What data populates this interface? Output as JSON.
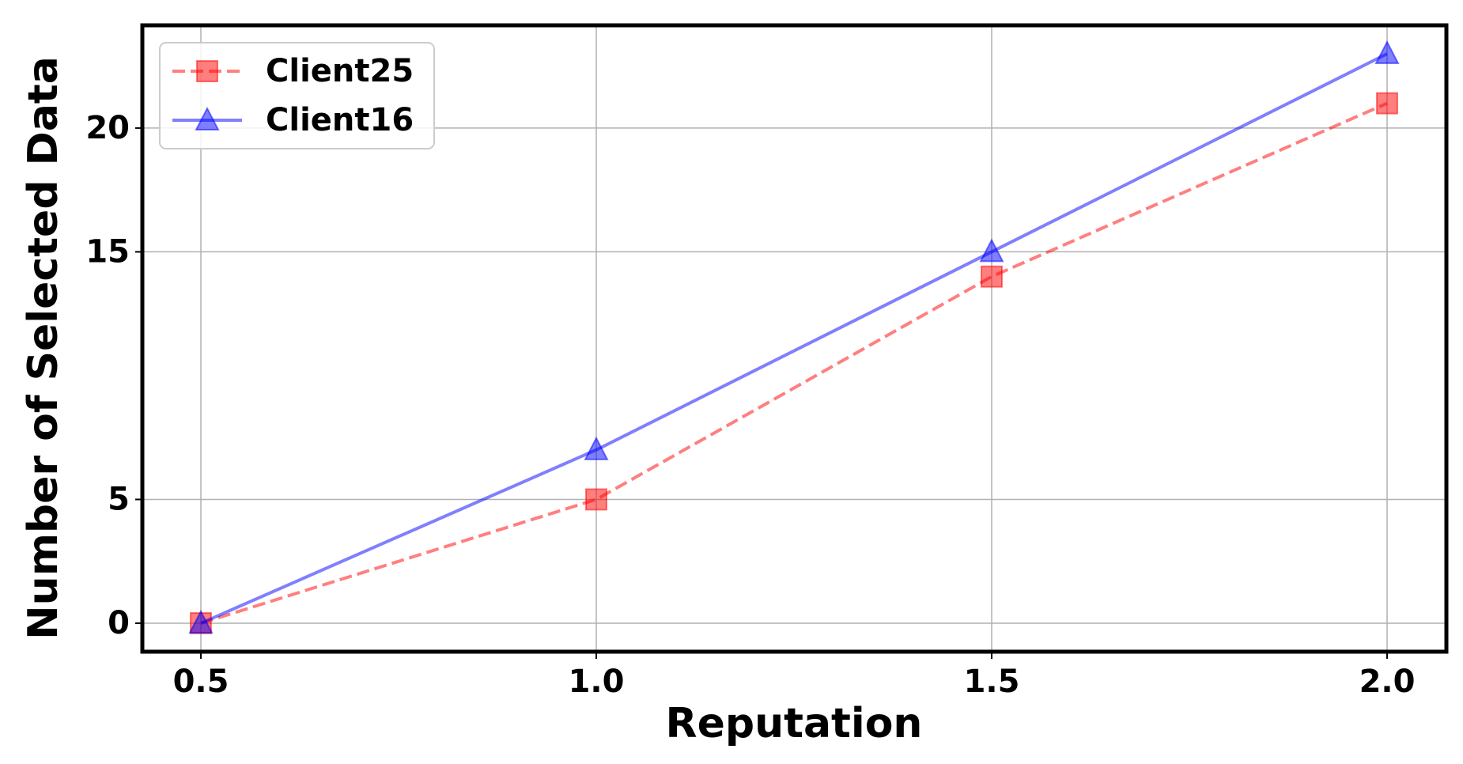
{
  "chart_data": {
    "type": "line",
    "x_label": "Reputation",
    "y_label": "Number of Selected Data",
    "x": [
      0.5,
      1.0,
      1.5,
      2.0
    ],
    "series": [
      {
        "name": "Client25",
        "color": "red",
        "dash": true,
        "marker": "square",
        "values": [
          0,
          5,
          14,
          21
        ]
      },
      {
        "name": "Client16",
        "color": "blue",
        "dash": false,
        "marker": "triangle",
        "values": [
          0,
          7,
          15,
          23
        ]
      }
    ],
    "xlim": [
      0.426,
      2.075
    ],
    "xticks": [
      0.5,
      {
        "value": 1.0,
        "label": "1.0"
      },
      1.5,
      {
        "value": 2.0,
        "label": "2.0"
      }
    ],
    "ylim": [
      -1.15,
      24.15
    ],
    "yticks": [
      0,
      5,
      15,
      20
    ],
    "grid": true,
    "legend": "upper left"
  }
}
